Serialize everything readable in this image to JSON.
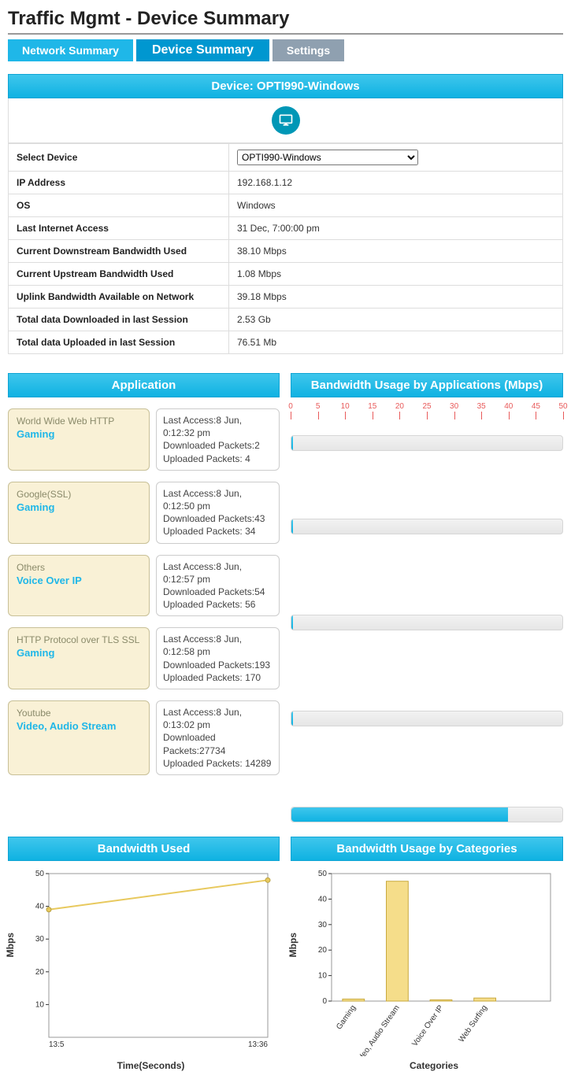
{
  "page_title": "Traffic Mgmt - Device Summary",
  "tabs": {
    "t1": "Network Summary",
    "t2": "Device Summary",
    "t3": "Settings"
  },
  "device_header": "Device: OPTI990-Windows",
  "info": {
    "select_label": "Select Device",
    "select_value": "OPTI990-Windows",
    "rows": [
      {
        "label": "IP Address",
        "value": "192.168.1.12"
      },
      {
        "label": "OS",
        "value": "Windows"
      },
      {
        "label": "Last Internet Access",
        "value": "31 Dec, 7:00:00 pm"
      },
      {
        "label": "Current Downstream Bandwidth Used",
        "value": "38.10 Mbps"
      },
      {
        "label": "Current Upstream Bandwidth Used",
        "value": "1.08 Mbps"
      },
      {
        "label": "Uplink Bandwidth Available on Network",
        "value": "39.18 Mbps"
      },
      {
        "label": "Total data Downloaded in last Session",
        "value": "2.53 Gb"
      },
      {
        "label": "Total data Uploaded in last Session",
        "value": "76.51 Mb"
      }
    ]
  },
  "headers": {
    "application": "Application",
    "bw_apps": "Bandwidth Usage by Applications (Mbps)",
    "bw_used": "Bandwidth Used",
    "bw_cats": "Bandwidth Usage by Categories"
  },
  "scale": {
    "min": 0,
    "max": 50,
    "step": 5
  },
  "apps": [
    {
      "name": "World Wide Web HTTP",
      "category": "Gaming",
      "detail": "Last Access:8 Jun, 0:12:32 pm\nDownloaded Packets:2\nUploaded Packets: 4",
      "bw": 0.3,
      "gap_after": 72
    },
    {
      "name": "Google(SSL)",
      "category": "Gaming",
      "detail": "Last Access:8 Jun, 0:12:50 pm\nDownloaded Packets:43\nUploaded Packets: 34",
      "bw": 0.3,
      "gap_after": 88
    },
    {
      "name": "Others",
      "category": "Voice Over IP",
      "detail": "Last Access:8 Jun, 0:12:57 pm\nDownloaded Packets:54\nUploaded Packets: 56",
      "bw": 0.3,
      "gap_after": 88
    },
    {
      "name": "HTTP Protocol over TLS SSL",
      "category": "Gaming",
      "detail": "Last Access:8 Jun, 0:12:58 pm\nDownloaded Packets:193\nUploaded Packets: 170",
      "bw": 0.3,
      "gap_after": 88
    },
    {
      "name": "Youtube",
      "category": "Video, Audio Stream",
      "detail": "Last Access:8 Jun, 0:13:02 pm\nDownloaded Packets:27734\nUploaded Packets: 14289",
      "bw": 40,
      "gap_after": 0
    }
  ],
  "line_chart": {
    "ylabel": "Mbps",
    "xlabel": "Time(Seconds)",
    "ymin": 0,
    "ymax": 50,
    "ystep": 10,
    "xticks": [
      "13:5",
      "13:36"
    ],
    "points": [
      [
        0,
        39
      ],
      [
        1,
        48
      ]
    ],
    "line_color": "#e8c95e",
    "line_width": 2,
    "marker_color": "#e8c95e"
  },
  "bar_chart": {
    "ylabel": "Mbps",
    "xlabel": "Categories",
    "ymin": 0,
    "ymax": 50,
    "ystep": 10,
    "categories": [
      "Gaming",
      "Video, Audio Stream",
      "Voice Over IP",
      "Web Surfing",
      ""
    ],
    "values": [
      0.8,
      47,
      0.5,
      1.2,
      0
    ],
    "bar_fill": "#f5dd8a",
    "bar_stroke": "#c8a93e"
  },
  "colors": {
    "header_bg": "#1fb7e8",
    "brand_teal": "#0097b6",
    "scale_red": "#e85a5a",
    "app_card_bg": "#f9f1d6"
  }
}
